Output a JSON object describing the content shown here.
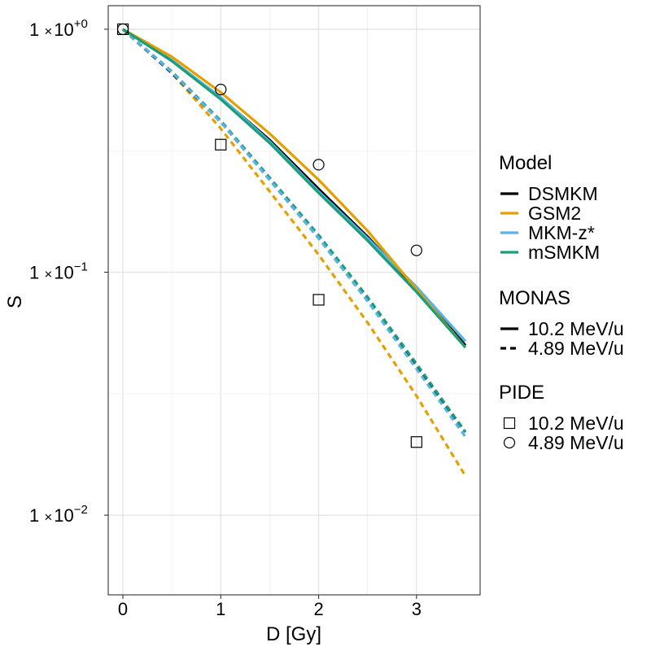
{
  "chart_data": {
    "type": "line",
    "title": "",
    "xlabel": "D [Gy]",
    "ylabel": "S",
    "xlim": [
      -0.15,
      3.65
    ],
    "ylim": [
      0.0047,
      1.25
    ],
    "yscale": "log",
    "grid": true,
    "x_ticks": [
      0,
      1,
      2,
      3
    ],
    "x_tick_labels": [
      "0",
      "1",
      "2",
      "3"
    ],
    "y_ticks": [
      1,
      0.1,
      0.01
    ],
    "y_tick_labels": [
      {
        "mantissa": "1",
        "times": "×",
        "base": "10",
        "exp": "+0"
      },
      {
        "mantissa": "1",
        "times": "×",
        "base": "10",
        "exp": "−1"
      },
      {
        "mantissa": "1",
        "times": "×",
        "base": "10",
        "exp": "−2"
      }
    ],
    "series": [
      {
        "name": "GSM2",
        "energy": "4.89 MeV/u",
        "style": "dashed",
        "color": "#E69F00",
        "x": [
          0,
          0.5,
          1,
          1.5,
          2,
          2.5,
          3,
          3.5
        ],
        "y": [
          1.0,
          0.66,
          0.39,
          0.215,
          0.118,
          0.062,
          0.031,
          0.0145
        ]
      },
      {
        "name": "DSMKM",
        "energy": "4.89 MeV/u",
        "style": "dashed",
        "color": "#000000",
        "x": [
          0,
          0.5,
          1,
          1.5,
          2,
          2.5,
          3,
          3.5
        ],
        "y": [
          1.0,
          0.66,
          0.415,
          0.24,
          0.138,
          0.077,
          0.041,
          0.022
        ]
      },
      {
        "name": "mSMKM",
        "energy": "4.89 MeV/u",
        "style": "dashed",
        "color": "#1B9E77",
        "x": [
          0,
          0.5,
          1,
          1.5,
          2,
          2.5,
          3,
          3.5
        ],
        "y": [
          1.0,
          0.67,
          0.42,
          0.245,
          0.142,
          0.079,
          0.042,
          0.022
        ]
      },
      {
        "name": "MKM-z*",
        "energy": "4.89 MeV/u",
        "style": "dashed",
        "color": "#56B4E9",
        "x": [
          0,
          0.5,
          1,
          1.5,
          2,
          2.5,
          3,
          3.5
        ],
        "y": [
          1.0,
          0.665,
          0.415,
          0.24,
          0.138,
          0.076,
          0.04,
          0.021
        ]
      },
      {
        "name": "DSMKM",
        "energy": "10.2 MeV/u",
        "style": "solid",
        "color": "#000000",
        "x": [
          0,
          0.5,
          1,
          1.5,
          2,
          2.5,
          3,
          3.5
        ],
        "y": [
          1.0,
          0.745,
          0.522,
          0.35,
          0.22,
          0.14,
          0.085,
          0.05
        ]
      },
      {
        "name": "MKM-z*",
        "energy": "10.2 MeV/u",
        "style": "solid",
        "color": "#56B4E9",
        "x": [
          0,
          0.5,
          1,
          1.5,
          2,
          2.5,
          3,
          3.5
        ],
        "y": [
          1.0,
          0.745,
          0.525,
          0.345,
          0.215,
          0.138,
          0.087,
          0.052
        ]
      },
      {
        "name": "GSM2",
        "energy": "10.2 MeV/u",
        "style": "solid",
        "color": "#E69F00",
        "x": [
          0,
          0.5,
          1,
          1.5,
          2,
          2.5,
          3,
          3.5
        ],
        "y": [
          1.0,
          0.77,
          0.55,
          0.372,
          0.24,
          0.148,
          0.085,
          0.049
        ]
      },
      {
        "name": "mSMKM",
        "energy": "10.2 MeV/u",
        "style": "solid",
        "color": "#1B9E77",
        "x": [
          0,
          0.5,
          1,
          1.5,
          2,
          2.5,
          3,
          3.5
        ],
        "y": [
          1.0,
          0.74,
          0.515,
          0.34,
          0.212,
          0.135,
          0.083,
          0.049
        ]
      }
    ],
    "points": [
      {
        "source": "PIDE",
        "energy": "10.2 MeV/u",
        "shape": "square",
        "x": [
          0,
          1,
          2,
          3
        ],
        "y": [
          1.0,
          0.335,
          0.077,
          0.02
        ]
      },
      {
        "source": "PIDE",
        "energy": "4.89 MeV/u",
        "shape": "circle",
        "x": [
          0,
          1,
          2,
          3
        ],
        "y": [
          1.0,
          0.565,
          0.277,
          0.123
        ]
      }
    ],
    "legend": {
      "placement": "right",
      "groups": [
        {
          "title": "Model",
          "kind": "color",
          "items": [
            {
              "label": "DSMKM",
              "color": "#000000"
            },
            {
              "label": "GSM2",
              "color": "#E69F00"
            },
            {
              "label": "MKM-z*",
              "color": "#56B4E9"
            },
            {
              "label": "mSMKM",
              "color": "#1B9E77"
            }
          ]
        },
        {
          "title": "MONAS",
          "kind": "linetype",
          "items": [
            {
              "label": "10.2 MeV/u",
              "style": "solid"
            },
            {
              "label": "4.89 MeV/u",
              "style": "dashed"
            }
          ]
        },
        {
          "title": "PIDE",
          "kind": "shape",
          "items": [
            {
              "label": "10.2 MeV/u",
              "shape": "square"
            },
            {
              "label": "4.89 MeV/u",
              "shape": "circle"
            }
          ]
        }
      ]
    }
  }
}
